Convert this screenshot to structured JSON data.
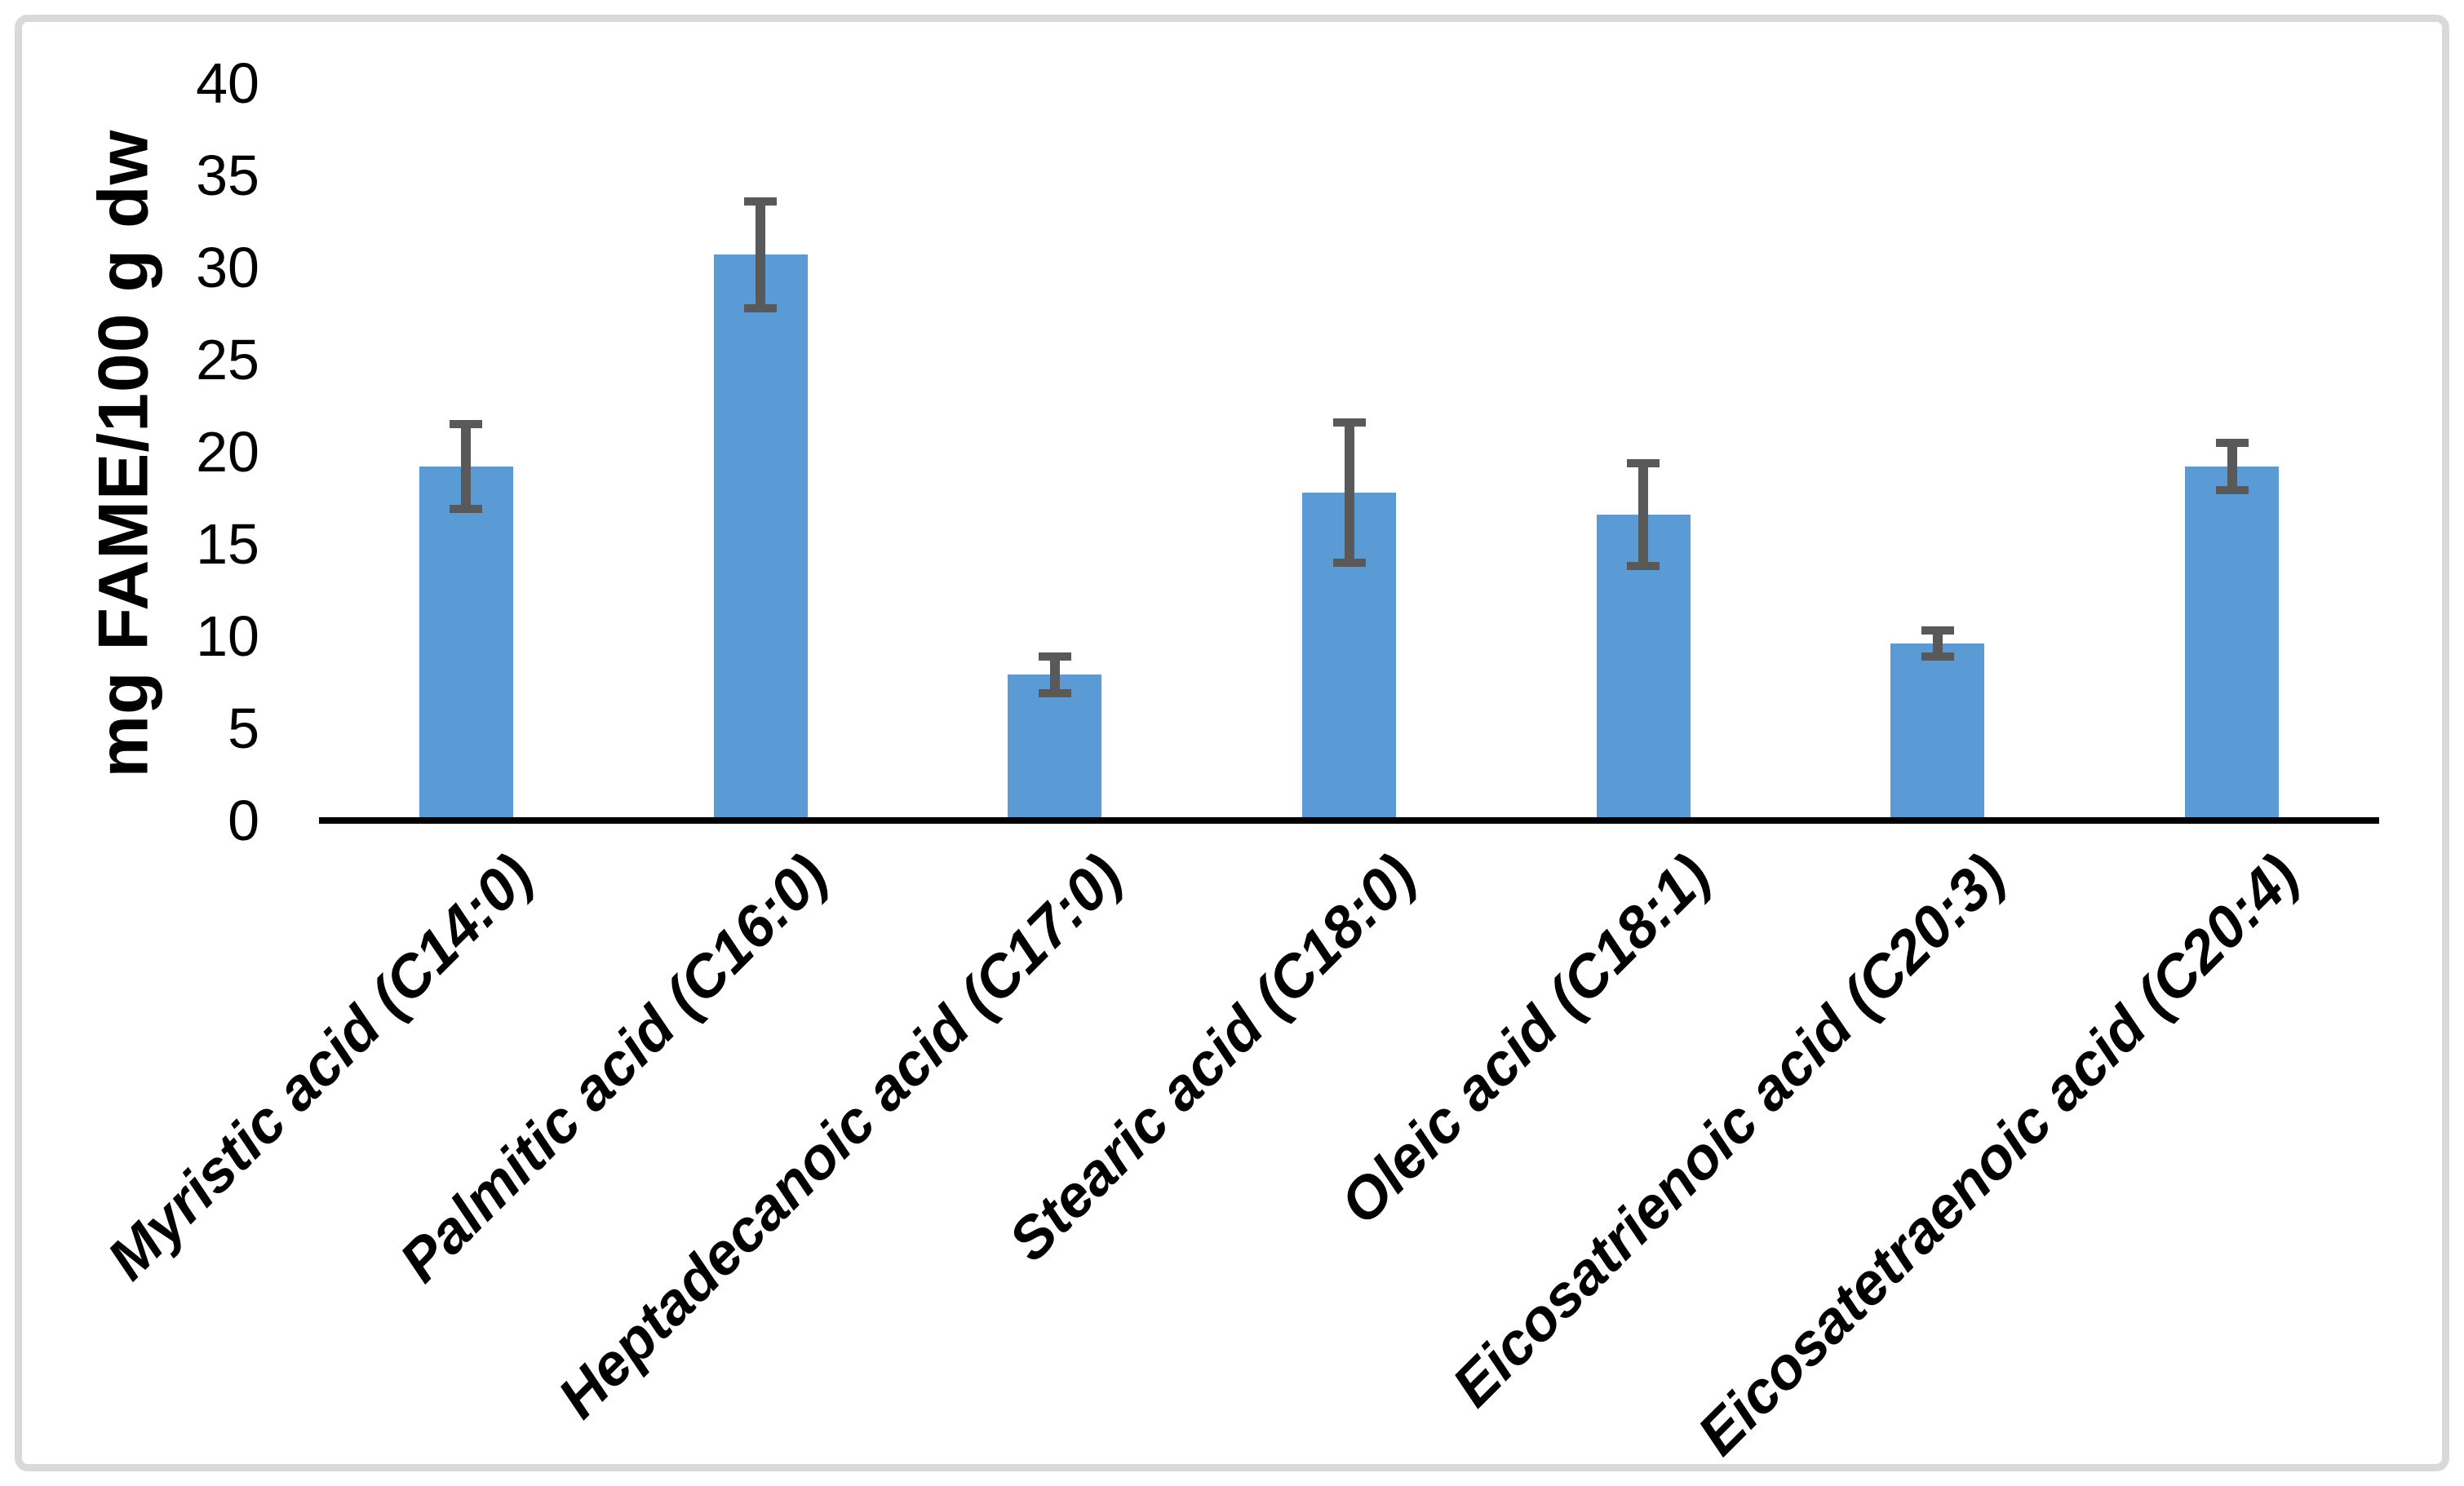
{
  "chart_data": {
    "type": "bar",
    "title": "",
    "xlabel": "",
    "ylabel": "mg FAME/100 g dw",
    "ylim": [
      0,
      40
    ],
    "yticks": [
      0,
      5,
      10,
      15,
      20,
      25,
      30,
      35,
      40
    ],
    "grid": false,
    "legend_position": "none",
    "categories": [
      "Myristic acid (C14:0)",
      "Palmitic acid (C16:0)",
      "Heptadecanoic acid (C17:0)",
      "Stearic acid (C18:0)",
      "Oleic acid (C18:1)",
      "Eicosatrienoic acid (C20:3)",
      "Eicosatetraenoic acid (C20:4)"
    ],
    "series": [
      {
        "name": "mg FAME/100 g dw",
        "values": [
          19.2,
          30.7,
          7.9,
          17.8,
          16.6,
          9.6,
          19.2
        ],
        "errors": [
          2.3,
          2.9,
          1.0,
          3.8,
          2.8,
          0.7,
          1.3
        ]
      }
    ],
    "colors": {
      "bar_fill": "#5b9bd5",
      "error_bar": "#595959",
      "axis_line": "#000000",
      "text": "#000000",
      "figure_border": "#d9d9d9",
      "background": "#ffffff"
    }
  }
}
